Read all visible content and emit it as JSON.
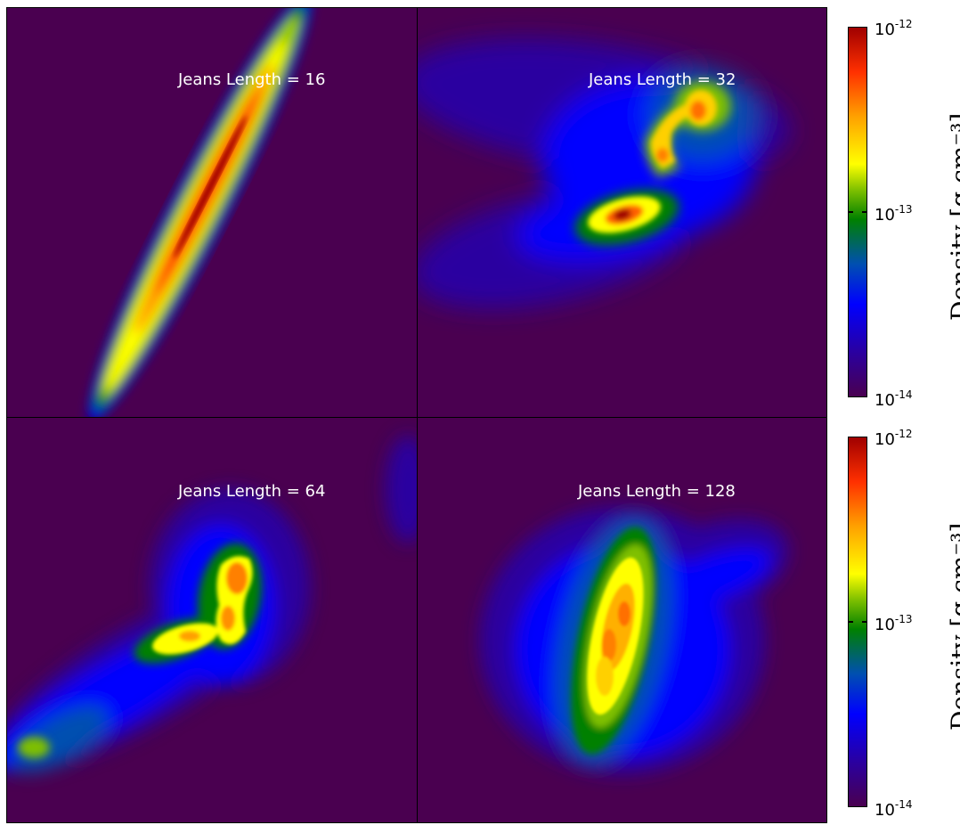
{
  "panels": [
    {
      "id": "p1",
      "label": "Jeans Length = 16"
    },
    {
      "id": "p2",
      "label": "Jeans Length = 32"
    },
    {
      "id": "p3",
      "label": "Jeans Length = 64"
    },
    {
      "id": "p4",
      "label": "Jeans Length = 128"
    }
  ],
  "colorbars": [
    {
      "label": "Density [g cm⁻³]",
      "ticks": [
        "10",
        "10",
        "10"
      ],
      "exponents": [
        "-12",
        "-13",
        "-14"
      ]
    },
    {
      "label": "Density [g cm⁻³]",
      "ticks": [
        "10",
        "10",
        "10"
      ],
      "exponents": [
        "-12",
        "-13",
        "-14"
      ]
    }
  ],
  "colors": {
    "background": "#4a0050",
    "low": "#0000ff",
    "mid": "#ffff00",
    "high": "#a00000"
  }
}
